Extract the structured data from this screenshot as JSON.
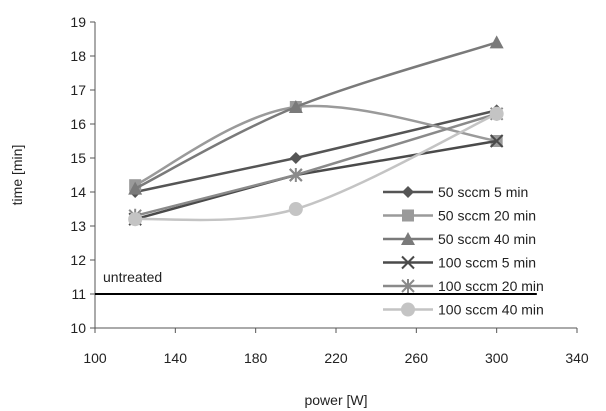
{
  "chart_data": {
    "type": "line",
    "title": "",
    "xlabel": "power [W]",
    "ylabel": "time [min]",
    "xlim": [
      100,
      340
    ],
    "ylim": [
      10,
      19
    ],
    "xticks": [
      100,
      140,
      180,
      220,
      260,
      300,
      340
    ],
    "yticks": [
      10,
      11,
      12,
      13,
      14,
      15,
      16,
      17,
      18,
      19
    ],
    "grid": false,
    "legend_position": "bottom-right",
    "series": [
      {
        "name": "50 sccm 5 min",
        "x": [
          120,
          200,
          300
        ],
        "y": [
          14.0,
          15.0,
          16.4
        ],
        "color": "#555555",
        "marker": "diamond",
        "smooth": false
      },
      {
        "name": "50 sccm 20 min",
        "x": [
          120,
          200,
          300
        ],
        "y": [
          14.2,
          16.5,
          15.5
        ],
        "color": "#9a9a9a",
        "marker": "square",
        "smooth": true
      },
      {
        "name": "50 sccm 40 min",
        "x": [
          120,
          200,
          300
        ],
        "y": [
          14.1,
          16.5,
          18.4
        ],
        "color": "#7a7a7a",
        "marker": "triangle",
        "smooth": true
      },
      {
        "name": "100 sccm 5 min",
        "x": [
          120,
          200,
          300
        ],
        "y": [
          13.2,
          14.5,
          15.5
        ],
        "color": "#4a4a4a",
        "marker": "x",
        "smooth": false
      },
      {
        "name": "100 sccm 20 min",
        "x": [
          120,
          200,
          300
        ],
        "y": [
          13.3,
          14.5,
          16.3
        ],
        "color": "#8a8a8a",
        "marker": "star",
        "smooth": false
      },
      {
        "name": "100 sccm 40 min",
        "x": [
          120,
          200,
          300
        ],
        "y": [
          13.2,
          13.5,
          16.3
        ],
        "color": "#c4c4c4",
        "marker": "circle",
        "smooth": true
      }
    ],
    "reference_line": {
      "label": "untreated",
      "y": 11,
      "x_range": [
        100,
        320
      ],
      "color": "#000000"
    }
  }
}
